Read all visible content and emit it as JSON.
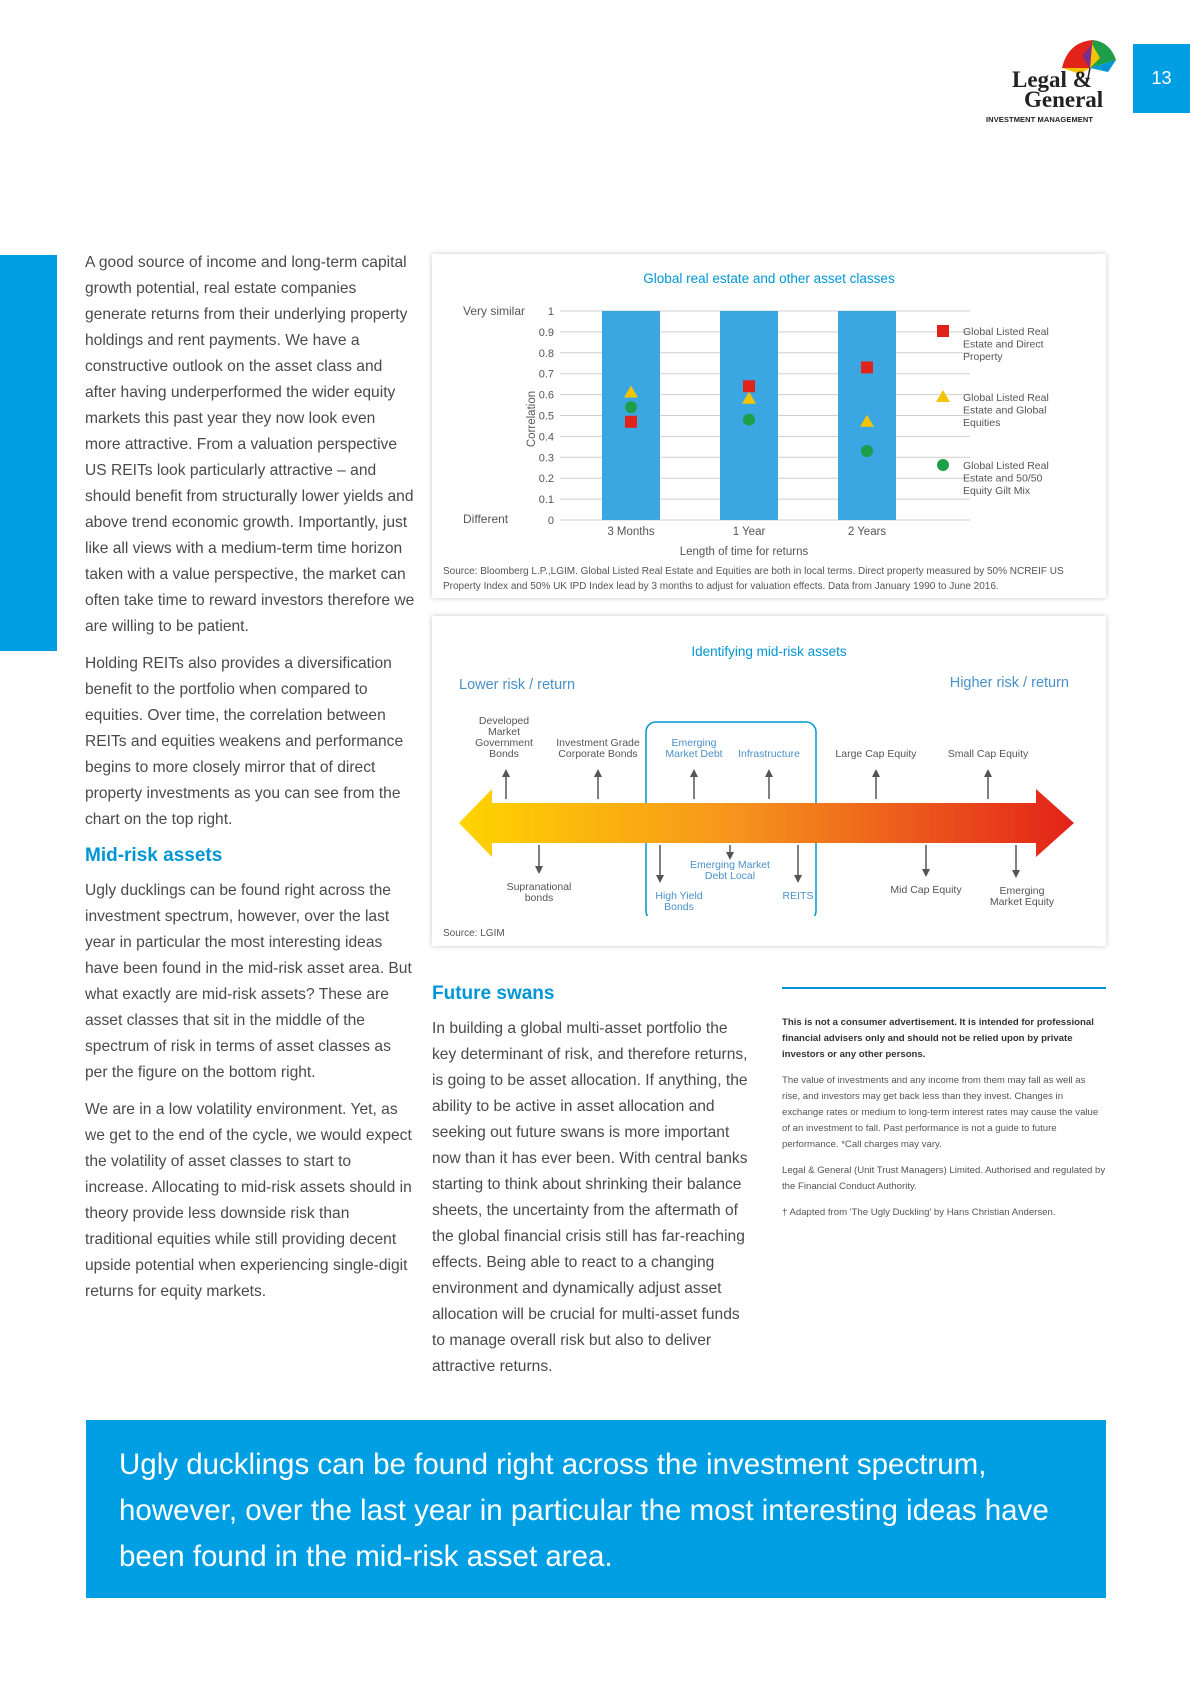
{
  "page_number": "13",
  "logo": {
    "line1": "Legal &",
    "line2": "General",
    "line3": "INVESTMENT MANAGEMENT"
  },
  "column1": {
    "p1": "A good source of income and long-term capital growth potential, real estate companies generate returns from their underlying property holdings and rent payments. We have a constructive outlook on the asset class and after having underperformed the wider equity markets this past year they now look even more attractive. From a valuation perspective US REITs look particularly attractive – and should benefit from structurally lower yields and above trend economic growth. Importantly, just like all views with a medium-term time horizon taken with a value perspective, the market can often take time to reward investors therefore we are willing to be patient.",
    "p2": "Holding REITs also provides a diversification benefit to the portfolio when compared to equities. Over time, the correlation between REITs and equities weakens and performance begins to more closely mirror that of direct property investments as you can see from the chart on the top right.",
    "heading": "Mid-risk assets",
    "p3": "Ugly ducklings can be found right across the investment spectrum, however, over the last year in particular the most interesting ideas have been found in the mid-risk asset area. But what exactly are mid-risk assets? These are asset classes that sit in the middle of the spectrum of risk in terms of asset classes as per the figure on the bottom right.",
    "p4": "We are in a low volatility environment. Yet, as we get to the end of the cycle, we would expect the volatility of asset classes to start to increase. Allocating to mid-risk assets should in theory provide less downside risk than traditional equities while still providing decent upside potential when experiencing single-digit returns for equity markets."
  },
  "chart_data": [
    {
      "type": "scatter",
      "title": "Global real estate and other asset classes",
      "xlabel": "Length of time for returns",
      "ylabel": "Correlation",
      "y_top_label": "Very similar",
      "y_bottom_label": "Different",
      "ylim": [
        0,
        1
      ],
      "yticks": [
        "0",
        "0.1",
        "0.2",
        "0.3",
        "0.4",
        "0.5",
        "0.6",
        "0.7",
        "0.8",
        "0.9",
        "1"
      ],
      "categories": [
        "3 Months",
        "1 Year",
        "2 Years"
      ],
      "grid": true,
      "legend_position": "right",
      "series": [
        {
          "name": "Global Listed Real Estate and Direct Property",
          "marker": "square",
          "color": "#e2231a",
          "values": [
            0.47,
            0.64,
            0.73
          ]
        },
        {
          "name": "Global Listed Real Estate and Global Equities",
          "marker": "triangle",
          "color": "#f5c400",
          "values": [
            0.61,
            0.58,
            0.47
          ]
        },
        {
          "name": "Global Listed Real Estate and 50/50 Equity Gilt Mix",
          "marker": "circle",
          "color": "#1e9e48",
          "values": [
            0.54,
            0.48,
            0.33
          ]
        }
      ],
      "source": "Source: Bloomberg L.P.,LGIM. Global Listed Real Estate and Equities are both in local terms. Direct property measured by 50% NCREIF US Property Index and 50% UK IPD Index lead by 3 months to adjust for valuation effects. Data from January 1990 to June 2016."
    }
  ],
  "diagram": {
    "title": "Identifying mid-risk assets",
    "lower": "Lower risk / return",
    "higher": "Higher risk / return",
    "above": [
      {
        "lines": [
          "Developed",
          "Market",
          "Government",
          "Bonds"
        ]
      },
      {
        "lines": [
          "Investment Grade",
          "Corporate Bonds"
        ]
      },
      {
        "lines": [
          "Emerging",
          "Market Debt"
        ]
      },
      {
        "lines": [
          "Infrastructure"
        ]
      },
      {
        "lines": [
          "Large Cap Equity"
        ]
      },
      {
        "lines": [
          "Small Cap Equity"
        ]
      }
    ],
    "below": [
      {
        "lines": [
          "Supranational",
          "bonds"
        ]
      },
      {
        "lines": [
          "High Yield",
          "Bonds"
        ]
      },
      {
        "lines": [
          "Emerging Market",
          "Debt Local"
        ]
      },
      {
        "lines": [
          "REITS"
        ]
      },
      {
        "lines": [
          "Mid Cap Equity"
        ]
      },
      {
        "lines": [
          "Emerging",
          "Market Equity"
        ]
      }
    ],
    "source": "Source: LGIM"
  },
  "column2": {
    "heading": "Future swans",
    "p1": "In building a global multi-asset portfolio the key determinant of risk, and therefore returns, is going to be asset allocation. If anything, the ability to be active in asset allocation and seeking out future swans is more important now than it has ever been. With central banks starting to think about shrinking their balance sheets, the uncertainty from the aftermath of the global financial crisis still has far-reaching effects. Being able to react to a changing environment and dynamically adjust asset allocation will be crucial for multi-asset funds to manage overall risk but also to deliver attractive returns."
  },
  "column3": {
    "bold": "This is not a consumer advertisement. It is intended for professional financial advisers only and should not be relied upon by private investors or any other persons.",
    "p1": "The value of investments and any income from them may fall as well as rise, and investors may get back less than they invest. Changes in exchange rates or medium to long-term interest rates may cause the value of an investment to fall. Past performance is not a guide to future performance. *Call charges may vary.",
    "p2": "Legal & General (Unit Trust Managers) Limited. Authorised and regulated by the Financial Conduct Authority.",
    "p3": "† Adapted from 'The Ugly Duckling' by Hans Christian Andersen."
  },
  "quote": "Ugly ducklings can be found right across the investment spectrum, however, over the last year in particular the most interesting ideas have been found in the mid-risk asset area."
}
